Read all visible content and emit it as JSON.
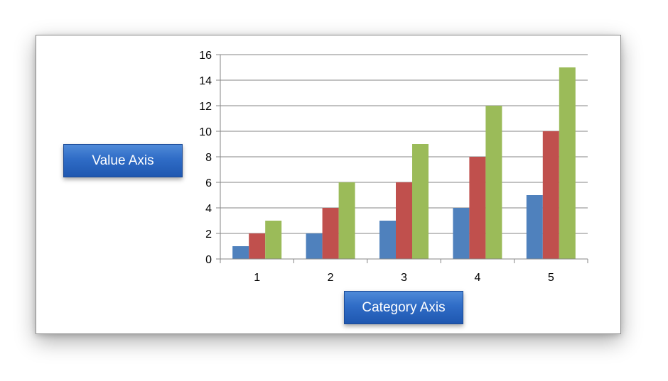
{
  "chart_data": {
    "type": "bar",
    "categories": [
      "1",
      "2",
      "3",
      "4",
      "5"
    ],
    "series": [
      {
        "values": [
          1,
          2,
          3,
          4,
          5
        ],
        "color": "#4f81bd"
      },
      {
        "values": [
          2,
          4,
          6,
          8,
          10
        ],
        "color": "#c0504d"
      },
      {
        "values": [
          3,
          6,
          9,
          12,
          15
        ],
        "color": "#9bbb59"
      }
    ],
    "ylim": [
      0,
      16
    ],
    "yticks": [
      0,
      2,
      4,
      6,
      8,
      10,
      12,
      14,
      16
    ],
    "grid": "horizontal",
    "legend": "none",
    "xlabel": "Category Axis",
    "ylabel": "Value Axis"
  }
}
